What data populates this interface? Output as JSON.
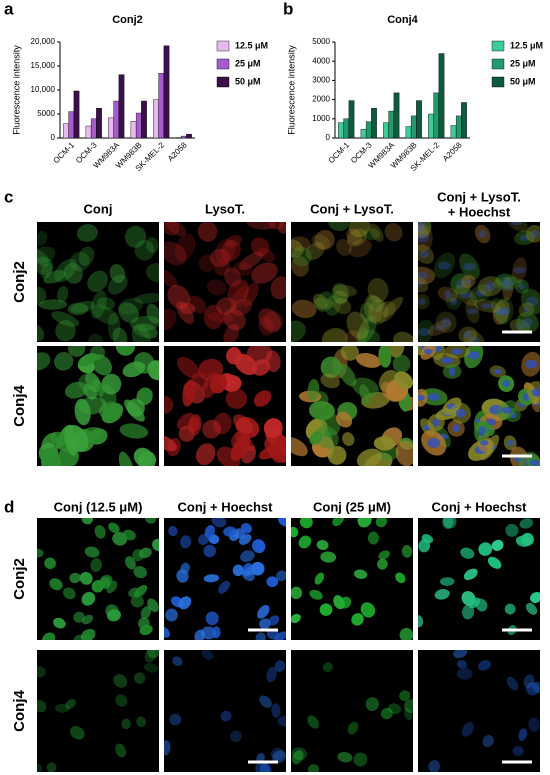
{
  "chart_data": [
    {
      "type": "bar",
      "title": "Conj2",
      "y_label": "Fluorescence intensity",
      "categories": [
        "OCM-1",
        "OCM-3",
        "WM983A",
        "WM983B",
        "SK-MEL-2",
        "A2058"
      ],
      "series": [
        {
          "name": "12.5 μM",
          "color": "#e8b8ee",
          "values": [
            3000,
            2500,
            4200,
            3500,
            8000,
            100
          ]
        },
        {
          "name": "25 μM",
          "color": "#a65ccc",
          "values": [
            5500,
            4000,
            7700,
            5200,
            13500,
            400
          ]
        },
        {
          "name": "50 μM",
          "color": "#3b0f4c",
          "values": [
            9800,
            6200,
            13200,
            7700,
            19200,
            800
          ]
        }
      ],
      "ylim": [
        0,
        20000
      ],
      "yticks": [
        0,
        5000,
        {
          "value": 10000,
          "label": "10,000"
        },
        {
          "value": 15000,
          "label": "15,000"
        },
        {
          "value": 20000,
          "label": "20,000"
        }
      ]
    },
    {
      "type": "bar",
      "title": "Conj4",
      "y_label": "Fluorescence intensity",
      "categories": [
        "OCM-1",
        "OCM-3",
        "WM983A",
        "WM983B",
        "SK-MEL-2",
        "A2058"
      ],
      "series": [
        {
          "name": "12.5 μM",
          "color": "#3ccb9a",
          "values": [
            800,
            450,
            800,
            600,
            1250,
            650
          ]
        },
        {
          "name": "25 μM",
          "color": "#229a6e",
          "values": [
            1000,
            850,
            1400,
            1150,
            2350,
            1150
          ]
        },
        {
          "name": "50 μM",
          "color": "#0e5a3d",
          "values": [
            1950,
            1550,
            2350,
            1950,
            4400,
            1850
          ]
        }
      ],
      "ylim": [
        0,
        5000
      ],
      "yticks": [
        0,
        1000,
        2000,
        3000,
        4000,
        5000
      ]
    }
  ],
  "figure": {
    "letters": [
      "a",
      "b",
      "c",
      "d"
    ],
    "c": {
      "columns": [
        [
          "Conj"
        ],
        [
          "LysoT."
        ],
        [
          "Conj + LysoT."
        ],
        [
          "Conj + LysoT.",
          "+ Hoechst"
        ]
      ],
      "rows": [
        "Conj2",
        "Conj4"
      ]
    },
    "d": {
      "columns": [
        "Conj (12.5 μM)",
        "Conj + Hoechst",
        "Conj (25 μM)",
        "Conj + Hoechst"
      ],
      "rows": [
        "Conj2",
        "Conj4"
      ]
    }
  }
}
